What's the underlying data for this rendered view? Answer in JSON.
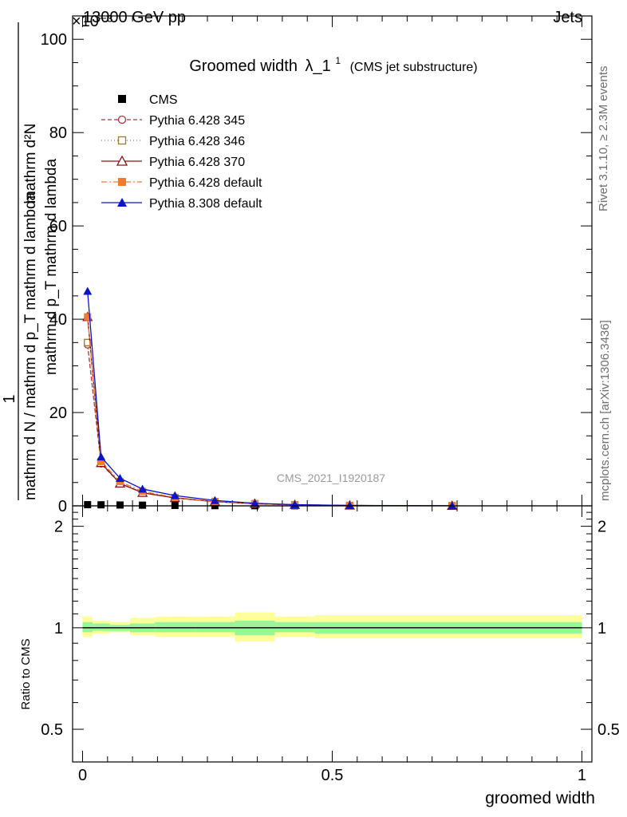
{
  "header": {
    "energy_label": "13000 GeV pp",
    "category_label": "Jets",
    "exponent_label": "×10⁻³"
  },
  "side_labels": {
    "rivet": "Rivet 3.1.10, ≥ 2.3M events",
    "mcplots": "mcplots.cern.ch [arXiv:1306.3436]"
  },
  "watermark": "CMS_2021_I1920187",
  "chart_data": [
    {
      "type": "line",
      "title": "Groomed width",
      "title_symbol": "λ_1",
      "title_superscript": "1",
      "title_suffix": "(CMS jet substructure)",
      "ylabel_numerator": "1",
      "ylabel_denominator": "mathrm d N / mathrm d p_T mathrm d lambda",
      "ylabel_top": "mathrm d²N",
      "ylabel_bottom": "mathrm d p_T mathrm d lambda",
      "ylim": [
        0,
        105
      ],
      "y_ticks": [
        0,
        20,
        40,
        60,
        80,
        100
      ],
      "xlim": [
        -0.02,
        1.02
      ],
      "x": [
        0.01,
        0.037,
        0.075,
        0.12,
        0.185,
        0.265,
        0.345,
        0.425,
        0.535,
        0.74
      ],
      "series": [
        {
          "name": "CMS",
          "color": "#000000",
          "marker": "square-filled",
          "dash": "none",
          "values": [
            0.25,
            0.22,
            0.18,
            0.14,
            0.09,
            0.05,
            0.03,
            0.02,
            0.01,
            0.01
          ]
        },
        {
          "name": "Pythia 6.428 345",
          "color": "#b03040",
          "marker": "circle-open",
          "dash": "5,3",
          "values": [
            34.5,
            9.0,
            4.8,
            2.8,
            1.7,
            0.9,
            0.45,
            0.22,
            0.08,
            0.02
          ]
        },
        {
          "name": "Pythia 6.428 346",
          "color": "#9a7a30",
          "marker": "square-open",
          "dash": "1,3",
          "values": [
            35.0,
            9.1,
            4.9,
            2.9,
            1.7,
            0.9,
            0.45,
            0.22,
            0.08,
            0.02
          ]
        },
        {
          "name": "Pythia 6.428 370",
          "color": "#8b1010",
          "marker": "triangle-open",
          "dash": "none",
          "values": [
            40.5,
            9.2,
            4.8,
            2.8,
            1.7,
            0.9,
            0.45,
            0.22,
            0.08,
            0.02
          ]
        },
        {
          "name": "Pythia 6.428 default",
          "color": "#f07a30",
          "marker": "square-filled",
          "dash": "7,3,2,3",
          "values": [
            40.5,
            9.5,
            5.2,
            3.1,
            1.8,
            0.95,
            0.48,
            0.23,
            0.08,
            0.02
          ]
        },
        {
          "name": "Pythia 8.308 default",
          "color": "#0a14c8",
          "marker": "triangle-filled",
          "dash": "none",
          "values": [
            46.0,
            10.5,
            5.9,
            3.6,
            2.2,
            1.15,
            0.55,
            0.26,
            0.09,
            0.02
          ]
        }
      ]
    },
    {
      "type": "area",
      "ylabel": "Ratio to CMS",
      "xlabel": "groomed width",
      "ylog": true,
      "ylim": [
        0.4,
        2.3
      ],
      "y_ticks": [
        0.5,
        1,
        2
      ],
      "y_tick_labels": [
        "0.5",
        "1",
        "2"
      ],
      "x_ticks": [
        0,
        0.5,
        1
      ],
      "x_tick_labels": [
        "0",
        "0.5",
        "1"
      ],
      "reference": 1.0,
      "bins": [
        0,
        0.02,
        0.055,
        0.095,
        0.145,
        0.225,
        0.305,
        0.385,
        0.465,
        1.0
      ],
      "band_total": [
        [
          0.94,
          1.08
        ],
        [
          0.96,
          1.05
        ],
        [
          0.97,
          1.04
        ],
        [
          0.95,
          1.07
        ],
        [
          0.94,
          1.08
        ],
        [
          0.94,
          1.08
        ],
        [
          0.91,
          1.11
        ],
        [
          0.94,
          1.08
        ],
        [
          0.93,
          1.09
        ]
      ],
      "band_stat": [
        [
          0.97,
          1.04
        ],
        [
          0.98,
          1.03
        ],
        [
          0.98,
          1.02
        ],
        [
          0.97,
          1.03
        ],
        [
          0.97,
          1.04
        ],
        [
          0.97,
          1.04
        ],
        [
          0.95,
          1.05
        ],
        [
          0.97,
          1.04
        ],
        [
          0.96,
          1.04
        ]
      ],
      "band_total_color": "#ffff99",
      "band_stat_color": "#99f599"
    }
  ]
}
